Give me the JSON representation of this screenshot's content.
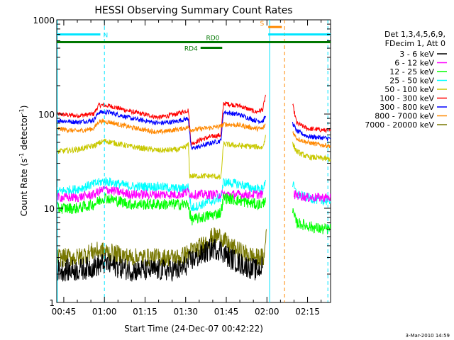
{
  "chart_data": {
    "type": "line",
    "title": "HESSI Observing Summary Count Rates",
    "xlabel": "Start Time (24-Dec-07 00:42:22)",
    "ylabel": "Count Rate (s",
    "ylabel_sup1": "-1",
    "ylabel_mid": " detector",
    "ylabel_sup2": "-1",
    "ylabel_end": ")",
    "y_scale": "log",
    "ylim": [
      1,
      1000
    ],
    "xlim_minutes": [
      42.4,
      143.5
    ],
    "x_ticks": [
      {
        "m": 45,
        "label": "00:45"
      },
      {
        "m": 60,
        "label": "01:00"
      },
      {
        "m": 75,
        "label": "01:15"
      },
      {
        "m": 90,
        "label": "01:30"
      },
      {
        "m": 105,
        "label": "01:45"
      },
      {
        "m": 120,
        "label": "02:00"
      },
      {
        "m": 135,
        "label": "02:15"
      }
    ],
    "y_ticks": [
      {
        "v": 1,
        "label": "1"
      },
      {
        "v": 10,
        "label": "10"
      },
      {
        "v": 100,
        "label": "100"
      },
      {
        "v": 1000,
        "label": "1000"
      }
    ],
    "legend": {
      "placement": "right",
      "header": [
        "Det 1,3,4,5,6,9,",
        "FDecim 1, Att 0"
      ],
      "entries": [
        {
          "label": "3 - 6 keV",
          "color": "#000000"
        },
        {
          "label": "6 - 12 keV",
          "color": "#ff00ff"
        },
        {
          "label": "12 - 25 keV",
          "color": "#00ff00"
        },
        {
          "label": "25 - 50 keV",
          "color": "#00ffff"
        },
        {
          "label": "50 - 100 keV",
          "color": "#c8c800"
        },
        {
          "label": "100 - 300 keV",
          "color": "#ff0000"
        },
        {
          "label": "300 - 800 keV",
          "color": "#0000ff"
        },
        {
          "label": "800 - 7000 keV",
          "color": "#ff8800"
        },
        {
          "label": "7000 - 20000 keV",
          "color": "#777700"
        }
      ]
    },
    "flags": [
      {
        "label": "N",
        "color": "#00e5ff",
        "start": 42.4,
        "end": 58.5,
        "level": 700
      },
      {
        "label": "",
        "color": "#00e5ff",
        "start": 120.5,
        "end": 143.5,
        "level": 700
      },
      {
        "label": "S",
        "color": "#ff8800",
        "start": 120.5,
        "end": 125.5,
        "level": 840
      },
      {
        "label": "RD0",
        "color": "#007700",
        "start": 42.4,
        "end": 143.5,
        "level": 580
      },
      {
        "label": "RD4",
        "color": "#007700",
        "start": 95.5,
        "end": 103.5,
        "level": 505
      }
    ],
    "vlines": [
      {
        "m": 60,
        "color": "#00e5ff",
        "style": "dashed"
      },
      {
        "m": 42.6,
        "color": "#00e5ff",
        "style": "solid"
      },
      {
        "m": 121,
        "color": "#00e5ff",
        "style": "solid"
      },
      {
        "m": 126.5,
        "color": "#ff8800",
        "style": "dashed"
      },
      {
        "m": 142.5,
        "color": "#00e5ff",
        "style": "dashed"
      }
    ],
    "series": [
      {
        "name": "100 - 300 keV",
        "color": "#ff0000",
        "noise": 0.025,
        "segments": [
          [
            [
              42.4,
              100
            ],
            [
              50,
              96
            ],
            [
              56,
              100
            ],
            [
              58,
              125
            ],
            [
              62,
              122
            ],
            [
              70,
              106
            ],
            [
              80,
              92
            ],
            [
              86,
              99
            ],
            [
              91,
              110
            ],
            [
              92,
              48
            ],
            [
              96,
              54
            ],
            [
              100,
              58
            ],
            [
              103,
              60
            ],
            [
              104,
              130
            ],
            [
              110,
              122
            ],
            [
              116,
              105
            ],
            [
              118.5,
              112
            ],
            [
              119.5,
              160
            ]
          ],
          [
            [
              129.5,
              125
            ],
            [
              131,
              80
            ],
            [
              135,
              70
            ],
            [
              140,
              68
            ],
            [
              143.5,
              66
            ]
          ]
        ]
      },
      {
        "name": "300 - 800 keV",
        "color": "#0000ff",
        "noise": 0.025,
        "segments": [
          [
            [
              42.4,
              86
            ],
            [
              50,
              82
            ],
            [
              56,
              86
            ],
            [
              58,
              105
            ],
            [
              62,
              104
            ],
            [
              70,
              90
            ],
            [
              80,
              80
            ],
            [
              86,
              83
            ],
            [
              91,
              90
            ],
            [
              92,
              43
            ],
            [
              96,
              46
            ],
            [
              100,
              50
            ],
            [
              103,
              52
            ],
            [
              104,
              105
            ],
            [
              110,
              98
            ],
            [
              116,
              85
            ],
            [
              118.5,
              84
            ],
            [
              119.5,
              95
            ]
          ],
          [
            [
              129.5,
              80
            ],
            [
              131,
              66
            ],
            [
              135,
              58
            ],
            [
              140,
              56
            ],
            [
              143.5,
              55
            ]
          ]
        ]
      },
      {
        "name": "800 - 7000 keV",
        "color": "#ff8800",
        "noise": 0.025,
        "segments": [
          [
            [
              42.4,
              70
            ],
            [
              50,
              66
            ],
            [
              56,
              70
            ],
            [
              58,
              84
            ],
            [
              62,
              82
            ],
            [
              70,
              72
            ],
            [
              80,
              64
            ],
            [
              86,
              68
            ],
            [
              91,
              72
            ],
            [
              92,
              68
            ],
            [
              100,
              72
            ],
            [
              103,
              74
            ],
            [
              104,
              78
            ],
            [
              110,
              76
            ],
            [
              116,
              70
            ],
            [
              118.5,
              70
            ],
            [
              119.5,
              78
            ]
          ],
          [
            [
              129.5,
              65
            ],
            [
              131,
              55
            ],
            [
              135,
              50
            ],
            [
              140,
              47
            ],
            [
              143.5,
              46
            ]
          ]
        ]
      },
      {
        "name": "50 - 100 keV",
        "color": "#c8c800",
        "noise": 0.03,
        "segments": [
          [
            [
              42.4,
              40
            ],
            [
              50,
              42
            ],
            [
              56,
              46
            ],
            [
              60,
              52
            ],
            [
              70,
              45
            ],
            [
              80,
              41
            ],
            [
              88,
              42
            ],
            [
              91,
              47
            ],
            [
              91.5,
              22
            ],
            [
              100,
              22
            ],
            [
              103,
              21
            ],
            [
              104,
              48
            ],
            [
              110,
              46
            ],
            [
              116,
              45
            ],
            [
              118.5,
              44
            ],
            [
              119.5,
              60
            ]
          ],
          [
            [
              129.5,
              48
            ],
            [
              131,
              40
            ],
            [
              135,
              35
            ],
            [
              140,
              34
            ],
            [
              143.5,
              33
            ]
          ]
        ]
      },
      {
        "name": "25 - 50 keV",
        "color": "#00ffff",
        "noise": 0.05,
        "segments": [
          [
            [
              42.4,
              15
            ],
            [
              50,
              16
            ],
            [
              56,
              18
            ],
            [
              60,
              19.5
            ],
            [
              70,
              17
            ],
            [
              80,
              17
            ],
            [
              88,
              16
            ],
            [
              91,
              17
            ],
            [
              92,
              10
            ],
            [
              96,
              11
            ],
            [
              100,
              12
            ],
            [
              103,
              13
            ],
            [
              104,
              19
            ],
            [
              110,
              18
            ],
            [
              116,
              16
            ],
            [
              118.5,
              16
            ],
            [
              119.5,
              20
            ]
          ],
          [
            [
              129.5,
              18
            ],
            [
              131,
              14
            ],
            [
              135,
              13
            ],
            [
              140,
              12
            ],
            [
              143.5,
              12
            ]
          ]
        ]
      },
      {
        "name": "6 - 12 keV",
        "color": "#ff00ff",
        "noise": 0.05,
        "segments": [
          [
            [
              42.4,
              13
            ],
            [
              50,
              13
            ],
            [
              56,
              14
            ],
            [
              60,
              16
            ],
            [
              70,
              14
            ],
            [
              80,
              14
            ],
            [
              88,
              14
            ],
            [
              91,
              15
            ],
            [
              92,
              14
            ],
            [
              100,
              14
            ],
            [
              104,
              14
            ],
            [
              110,
              14
            ],
            [
              116,
              14
            ],
            [
              118.5,
              14
            ]
          ],
          [
            [
              130,
              14
            ],
            [
              135,
              13
            ],
            [
              140,
              13
            ],
            [
              143.5,
              13
            ]
          ]
        ]
      },
      {
        "name": "12 - 25 keV",
        "color": "#00ff00",
        "noise": 0.06,
        "segments": [
          [
            [
              42.4,
              10
            ],
            [
              50,
              10
            ],
            [
              56,
              11
            ],
            [
              60,
              13
            ],
            [
              70,
              11
            ],
            [
              80,
              11
            ],
            [
              88,
              11
            ],
            [
              91,
              11
            ],
            [
              92,
              7.5
            ],
            [
              96,
              8
            ],
            [
              100,
              8.5
            ],
            [
              103,
              9
            ],
            [
              104,
              13
            ],
            [
              110,
              12
            ],
            [
              116,
              11
            ],
            [
              118.5,
              11
            ],
            [
              119.5,
              13
            ]
          ],
          [
            [
              129.5,
              9
            ],
            [
              131,
              7
            ],
            [
              135,
              6.5
            ],
            [
              140,
              6
            ],
            [
              143.5,
              6
            ]
          ]
        ]
      },
      {
        "name": "7000 - 20000 keV",
        "color": "#777700",
        "noise": 0.1,
        "segments": [
          [
            [
              42.4,
              3
            ],
            [
              50,
              3
            ],
            [
              56,
              3.5
            ],
            [
              60,
              3.5
            ],
            [
              70,
              3
            ],
            [
              80,
              3
            ],
            [
              88,
              3
            ],
            [
              92,
              3.5
            ],
            [
              96,
              4
            ],
            [
              100,
              5
            ],
            [
              103,
              5
            ],
            [
              106,
              4
            ],
            [
              110,
              3.5
            ],
            [
              116,
              3
            ],
            [
              119,
              3
            ],
            [
              119.8,
              6
            ]
          ]
        ]
      },
      {
        "name": "3 - 6 keV",
        "color": "#000000",
        "noise": 0.12,
        "segments": [
          [
            [
              42.4,
              2.2
            ],
            [
              50,
              2.2
            ],
            [
              56,
              2.4
            ],
            [
              60,
              2.6
            ],
            [
              70,
              2.2
            ],
            [
              80,
              2.2
            ],
            [
              88,
              2.2
            ],
            [
              92,
              2.8
            ],
            [
              96,
              3.2
            ],
            [
              100,
              3.8
            ],
            [
              103,
              3.6
            ],
            [
              106,
              3
            ],
            [
              110,
              2.6
            ],
            [
              116,
              2.2
            ],
            [
              118.5,
              2.4
            ]
          ]
        ]
      }
    ]
  },
  "timestamp": "3-Mar-2010 14:59"
}
